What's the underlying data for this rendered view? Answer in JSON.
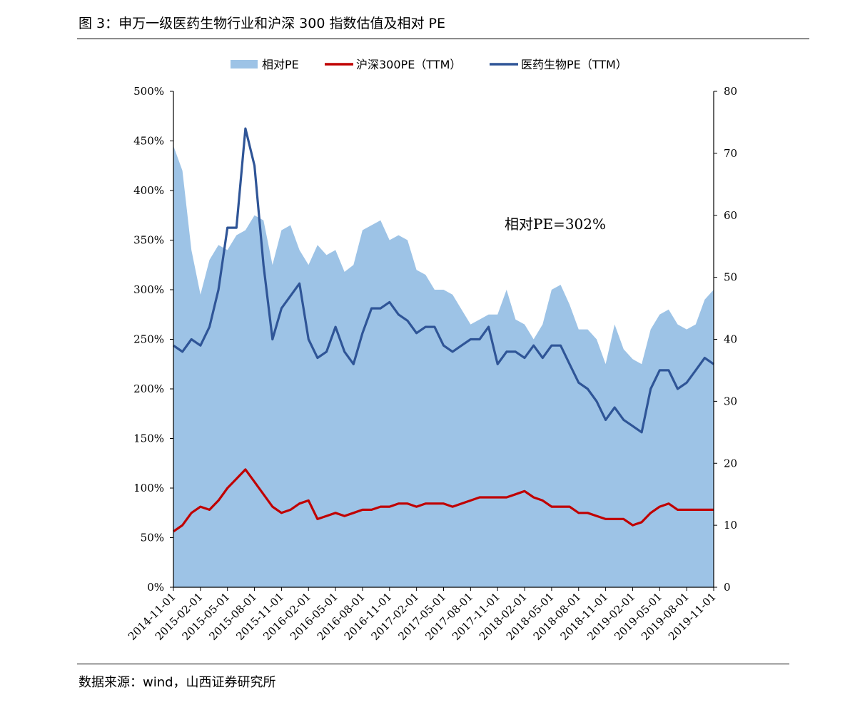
{
  "figure": {
    "title": "图 3：申万一级医药生物行业和沪深 300 指数估值及相对 PE",
    "source": "数据来源：wind，山西证券研究所"
  },
  "colors": {
    "relative_area": "#9dc3e6",
    "hs300_line": "#c00000",
    "pharma_line": "#2f5597",
    "axis": "#000000"
  },
  "chart_data": {
    "type": "area",
    "legend_position": "top",
    "grid": false,
    "legend": [
      {
        "label": "相对PE",
        "kind": "area",
        "color": "#9dc3e6"
      },
      {
        "label": "沪深300PE（TTM）",
        "kind": "line",
        "color": "#c00000"
      },
      {
        "label": "医药生物PE（TTM）",
        "kind": "line",
        "color": "#2f5597"
      }
    ],
    "annotation": "相对PE=302%",
    "x_axis": {
      "ticks": [
        "2014-11-01",
        "2015-02-01",
        "2015-05-01",
        "2015-08-01",
        "2015-11-01",
        "2016-02-01",
        "2016-05-01",
        "2016-08-01",
        "2016-11-01",
        "2017-02-01",
        "2017-05-01",
        "2017-08-01",
        "2017-11-01",
        "2018-02-01",
        "2018-05-01",
        "2018-08-01",
        "2018-11-01",
        "2019-02-01",
        "2019-05-01",
        "2019-08-01",
        "2019-11-01"
      ]
    },
    "y_left": {
      "min": 0,
      "max": 500,
      "step": 50,
      "unit": "%",
      "ticks": [
        "0%",
        "50%",
        "100%",
        "150%",
        "200%",
        "250%",
        "300%",
        "350%",
        "400%",
        "450%",
        "500%"
      ]
    },
    "y_right": {
      "min": 0,
      "max": 80,
      "step": 10,
      "ticks": [
        "0",
        "10",
        "20",
        "30",
        "40",
        "50",
        "60",
        "70",
        "80"
      ]
    },
    "x": [
      "2014-11",
      "2014-12",
      "2015-01",
      "2015-02",
      "2015-03",
      "2015-04",
      "2015-05",
      "2015-06",
      "2015-07",
      "2015-08",
      "2015-09",
      "2015-10",
      "2015-11",
      "2015-12",
      "2016-01",
      "2016-02",
      "2016-03",
      "2016-04",
      "2016-05",
      "2016-06",
      "2016-07",
      "2016-08",
      "2016-09",
      "2016-10",
      "2016-11",
      "2016-12",
      "2017-01",
      "2017-02",
      "2017-03",
      "2017-04",
      "2017-05",
      "2017-06",
      "2017-07",
      "2017-08",
      "2017-09",
      "2017-10",
      "2017-11",
      "2017-12",
      "2018-01",
      "2018-02",
      "2018-03",
      "2018-04",
      "2018-05",
      "2018-06",
      "2018-07",
      "2018-08",
      "2018-09",
      "2018-10",
      "2018-11",
      "2018-12",
      "2019-01",
      "2019-02",
      "2019-03",
      "2019-04",
      "2019-05",
      "2019-06",
      "2019-07",
      "2019-08",
      "2019-09",
      "2019-10",
      "2019-11"
    ],
    "series": [
      {
        "name": "相对PE",
        "axis": "left",
        "kind": "area",
        "values": [
          445,
          420,
          340,
          295,
          330,
          345,
          340,
          355,
          360,
          375,
          370,
          325,
          360,
          365,
          340,
          325,
          345,
          335,
          340,
          318,
          325,
          360,
          365,
          370,
          350,
          355,
          350,
          320,
          315,
          300,
          300,
          295,
          280,
          265,
          270,
          275,
          275,
          300,
          270,
          265,
          250,
          265,
          300,
          305,
          285,
          260,
          260,
          250,
          225,
          265,
          240,
          230,
          225,
          260,
          275,
          280,
          265,
          260,
          265,
          290,
          300
        ]
      },
      {
        "name": "沪深300PE（TTM）",
        "axis": "right",
        "kind": "line",
        "values": [
          9,
          10,
          12,
          13,
          12.5,
          14,
          16,
          17.5,
          19,
          17,
          15,
          13,
          12,
          12.5,
          13.5,
          14,
          11,
          11.5,
          12,
          11.5,
          12,
          12.5,
          12.5,
          13,
          13,
          13.5,
          13.5,
          13,
          13.5,
          13.5,
          13.5,
          13,
          13.5,
          14,
          14.5,
          14.5,
          14.5,
          14.5,
          15,
          15.5,
          14.5,
          14,
          13,
          13,
          13,
          12,
          12,
          11.5,
          11,
          11,
          11,
          10,
          10.5,
          12,
          13,
          13.5,
          12.5,
          12.5,
          12.5,
          12.5,
          12.5
        ]
      },
      {
        "name": "医药生物PE（TTM）",
        "axis": "right",
        "kind": "line",
        "values": [
          39,
          38,
          40,
          39,
          42,
          48,
          58,
          58,
          74,
          68,
          52,
          40,
          45,
          47,
          49,
          40,
          37,
          38,
          42,
          38,
          36,
          41,
          45,
          45,
          46,
          44,
          43,
          41,
          42,
          42,
          39,
          38,
          39,
          40,
          40,
          42,
          36,
          38,
          38,
          37,
          39,
          37,
          39,
          39,
          36,
          33,
          32,
          30,
          27,
          29,
          27,
          26,
          25,
          32,
          35,
          35,
          32,
          33,
          35,
          37,
          36
        ]
      }
    ]
  }
}
